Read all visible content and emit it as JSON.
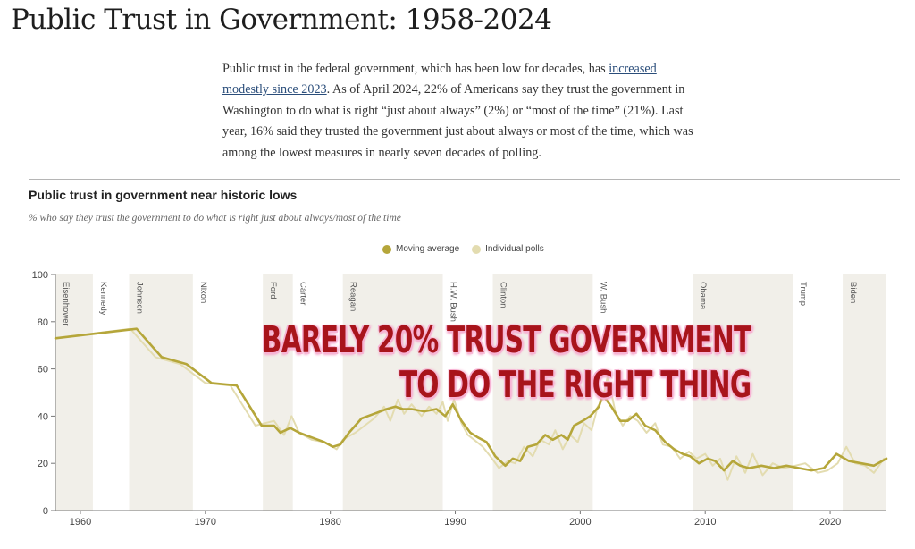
{
  "page": {
    "title": "Public Trust in Government: 1958-2024",
    "intro_part1": "Public trust in the federal government, which has been low for decades, has ",
    "intro_link": "increased modestly since 2023",
    "intro_part2": ". As of April 2024, 22% of Americans say they trust the government in Washington to do what is right “just about always” (2%) or “most of the time” (21%). Last year, 16% said they trusted the government just about always or most of the time, which was among the lowest measures in nearly seven decades of polling."
  },
  "overlay": {
    "line1": "BARELY 20% TRUST GOVERNMENT",
    "line2": "TO DO THE RIGHT THING"
  },
  "colors": {
    "moving_average": "#b5a63a",
    "individual_polls": "#e3dcb0",
    "shade": "#f1efe9",
    "overlay_text": "#a8141b"
  },
  "chart_data": {
    "type": "line",
    "title": "Public trust in government near historic lows",
    "subtitle": "% who say they trust the government to do what is right just about always/most of the time",
    "legend": [
      "Moving average",
      "Individual polls"
    ],
    "legend_position": "top-center",
    "xlim": [
      1958,
      2024.5
    ],
    "ylim": [
      0,
      100
    ],
    "x_ticks": [
      1960,
      1970,
      1980,
      1990,
      2000,
      2010,
      2020
    ],
    "y_ticks": [
      0,
      20,
      40,
      60,
      80,
      100
    ],
    "grid": false,
    "presidents": [
      {
        "name": "Eisenhower",
        "start": 1958,
        "end": 1961,
        "shaded": true
      },
      {
        "name": "Kennedy",
        "start": 1961,
        "end": 1963.9,
        "shaded": false
      },
      {
        "name": "Johnson",
        "start": 1963.9,
        "end": 1969,
        "shaded": true
      },
      {
        "name": "Nixon",
        "start": 1969,
        "end": 1974.6,
        "shaded": false
      },
      {
        "name": "Ford",
        "start": 1974.6,
        "end": 1977,
        "shaded": true
      },
      {
        "name": "Carter",
        "start": 1977,
        "end": 1981,
        "shaded": false
      },
      {
        "name": "Reagan",
        "start": 1981,
        "end": 1989,
        "shaded": true
      },
      {
        "name": "H.W. Bush",
        "start": 1989,
        "end": 1993,
        "shaded": false
      },
      {
        "name": "Clinton",
        "start": 1993,
        "end": 2001,
        "shaded": true
      },
      {
        "name": "W. Bush",
        "start": 2001,
        "end": 2009,
        "shaded": false
      },
      {
        "name": "Obama",
        "start": 2009,
        "end": 2017,
        "shaded": true
      },
      {
        "name": "Trump",
        "start": 2017,
        "end": 2021,
        "shaded": false
      },
      {
        "name": "Biden",
        "start": 2021,
        "end": 2024.5,
        "shaded": true
      }
    ],
    "series": [
      {
        "name": "Moving average",
        "x": [
          1958,
          1964.5,
          1966.5,
          1968.5,
          1970.5,
          1972.5,
          1974.5,
          1975.5,
          1976,
          1976.8,
          1977.5,
          1978.5,
          1979.5,
          1980.2,
          1980.8,
          1981.5,
          1982.5,
          1983.5,
          1984.5,
          1985.2,
          1985.8,
          1986.5,
          1987.5,
          1988.5,
          1989.2,
          1989.8,
          1990.5,
          1991.2,
          1991.8,
          1992.5,
          1993.2,
          1994,
          1994.6,
          1995.2,
          1995.8,
          1996.5,
          1997.2,
          1997.8,
          1998.5,
          1999,
          1999.5,
          2000.2,
          2000.8,
          2001.5,
          2001.8,
          2002.5,
          2003.2,
          2003.8,
          2004.5,
          2005.2,
          2006,
          2006.8,
          2007.5,
          2008.2,
          2008.8,
          2009.5,
          2010.2,
          2010.8,
          2011.5,
          2012.2,
          2012.8,
          2013.5,
          2014.5,
          2015.5,
          2016.5,
          2017.5,
          2018.5,
          2019.5,
          2020.5,
          2021.5,
          2022.5,
          2023.5,
          2024.5
        ],
        "y": [
          73,
          77,
          65,
          62,
          54,
          53,
          36,
          36,
          33,
          35,
          33,
          31,
          29,
          27,
          28,
          33,
          39,
          41,
          43,
          44,
          43,
          43,
          42,
          43,
          40,
          45,
          38,
          33,
          31,
          29,
          23,
          19,
          22,
          21,
          27,
          28,
          32,
          30,
          32,
          30,
          36,
          38,
          40,
          44,
          49,
          44,
          38,
          38,
          41,
          36,
          34,
          29,
          26,
          24,
          23,
          20,
          22,
          21,
          17,
          21,
          19,
          18,
          19,
          18,
          19,
          18,
          17,
          18,
          24,
          21,
          20,
          19,
          22
        ]
      },
      {
        "name": "Individual polls",
        "x": [
          1958,
          1964,
          1966,
          1968,
          1970,
          1972,
          1974,
          1975.5,
          1976.3,
          1976.9,
          1977.5,
          1978.5,
          1979.5,
          1980.5,
          1981,
          1982,
          1983.5,
          1984.3,
          1984.8,
          1985.4,
          1985.9,
          1986.5,
          1987.3,
          1987.9,
          1988.5,
          1989,
          1989.4,
          1989.9,
          1990.5,
          1991,
          1991.5,
          1992.2,
          1992.8,
          1993.5,
          1994.2,
          1994.8,
          1995.5,
          1996.2,
          1996.8,
          1997.5,
          1998,
          1998.6,
          1999.2,
          1999.8,
          2000.3,
          2000.9,
          2001.4,
          2001.8,
          2002.2,
          2002.8,
          2003.4,
          2004,
          2004.6,
          2005.3,
          2006,
          2006.6,
          2007.3,
          2008,
          2008.7,
          2009.3,
          2010,
          2010.6,
          2011.2,
          2011.8,
          2012.5,
          2013.2,
          2013.8,
          2014.6,
          2015.4,
          2016.3,
          2017.2,
          2018,
          2019,
          2019.8,
          2020.6,
          2021.3,
          2022,
          2022.8,
          2023.5,
          2024.3
        ],
        "y": [
          73,
          77,
          65,
          62,
          54,
          53,
          36,
          38,
          32,
          40,
          33,
          30,
          29,
          26,
          30,
          33,
          39,
          44,
          38,
          47,
          41,
          45,
          40,
          44,
          41,
          46,
          38,
          47,
          37,
          32,
          30,
          27,
          23,
          18,
          21,
          20,
          27,
          23,
          30,
          28,
          34,
          26,
          32,
          29,
          37,
          34,
          44,
          47,
          57,
          42,
          36,
          40,
          38,
          33,
          37,
          28,
          27,
          22,
          25,
          22,
          24,
          19,
          22,
          13,
          23,
          16,
          24,
          15,
          20,
          18,
          19,
          20,
          16,
          17,
          20,
          27,
          20,
          19,
          16,
          22
        ]
      }
    ]
  }
}
